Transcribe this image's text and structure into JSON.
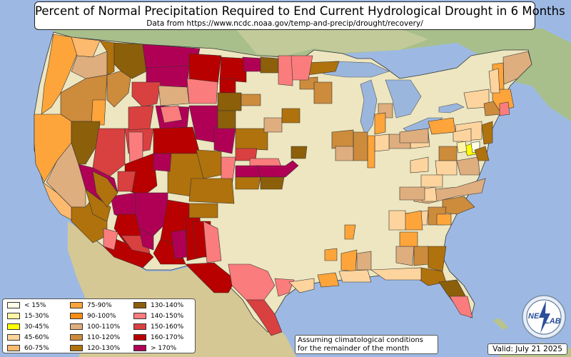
{
  "title": "Percent of Normal Precipitation Required to End Current Hydrological Drought in 6 Months",
  "subtitle": "Data from https://www.ncdc.noaa.gov/temp-and-precip/drought/recovery/",
  "note_lines": [
    "Assuming climatological conditions",
    "for the remainder of the month"
  ],
  "valid": "Valid: July 21 2025",
  "logo_text": [
    "NE",
    "LAB"
  ],
  "legend": [
    {
      "label": "< 15%",
      "color": "#ffffe5"
    },
    {
      "label": "15-30%",
      "color": "#fff5a6"
    },
    {
      "label": "30-45%",
      "color": "#ffff00"
    },
    {
      "label": "45-60%",
      "color": "#fdd49e"
    },
    {
      "label": "60-75%",
      "color": "#fdb96e"
    },
    {
      "label": "75-90%",
      "color": "#fda53a"
    },
    {
      "label": "90-100%",
      "color": "#f98d14"
    },
    {
      "label": "100-110%",
      "color": "#deae7f"
    },
    {
      "label": "110-120%",
      "color": "#cd8b3c"
    },
    {
      "label": "120-130%",
      "color": "#b0720d"
    },
    {
      "label": "130-140%",
      "color": "#8c5f0a"
    },
    {
      "label": "140-150%",
      "color": "#fb7c7c"
    },
    {
      "label": "150-160%",
      "color": "#d94040"
    },
    {
      "label": "160-170%",
      "color": "#b90000"
    },
    {
      "label": "> 170%",
      "color": "#b00055"
    }
  ],
  "colors": {
    "ocean": "#9db9e3",
    "lake": "#9bb6dd",
    "land": "#b9c69a",
    "land_forest": "#8aac7e",
    "land_desert": "#d8c89a",
    "us_base": "#ede6c0",
    "state_border": "#333333"
  }
}
